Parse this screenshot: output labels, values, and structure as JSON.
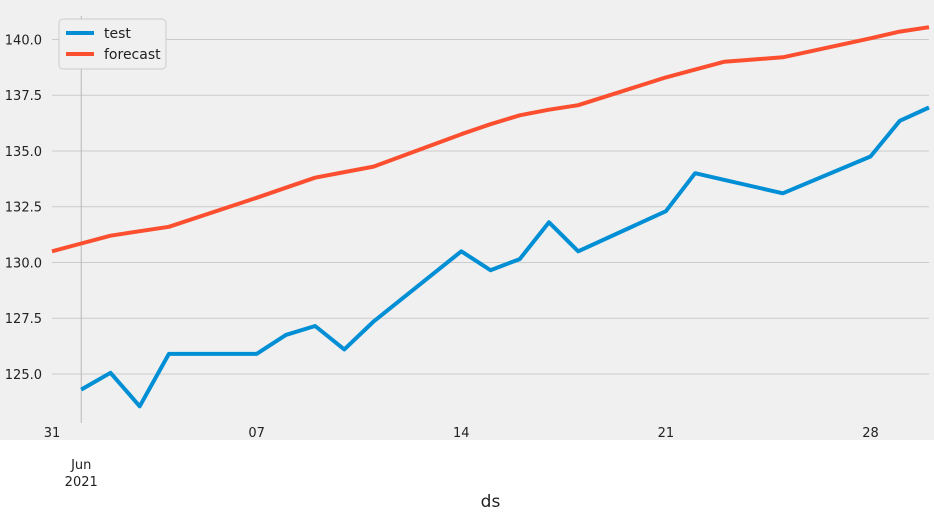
{
  "chart_data": {
    "type": "line",
    "title": "",
    "xlabel": "ds",
    "ylabel": "",
    "x": [
      "2021-05-31",
      "2021-06-01",
      "2021-06-02",
      "2021-06-03",
      "2021-06-04",
      "2021-06-05",
      "2021-06-06",
      "2021-06-07",
      "2021-06-08",
      "2021-06-09",
      "2021-06-10",
      "2021-06-11",
      "2021-06-12",
      "2021-06-13",
      "2021-06-14",
      "2021-06-15",
      "2021-06-16",
      "2021-06-17",
      "2021-06-18",
      "2021-06-19",
      "2021-06-20",
      "2021-06-21",
      "2021-06-22",
      "2021-06-23",
      "2021-06-24",
      "2021-06-25",
      "2021-06-26",
      "2021-06-27",
      "2021-06-28",
      "2021-06-29",
      "2021-06-30"
    ],
    "xlim": [
      "2021-05-31",
      "2021-06-30"
    ],
    "ylim": [
      122.8,
      141.5
    ],
    "y_ticks": [
      125.0,
      127.5,
      130.0,
      132.5,
      135.0,
      137.5,
      140.0
    ],
    "y_tick_labels": [
      "125.0",
      "127.5",
      "130.0",
      "132.5",
      "135.0",
      "137.5",
      "140.0"
    ],
    "x_ticks": [
      {
        "date": "2021-05-31",
        "label": "31",
        "sublabel": ""
      },
      {
        "date": "2021-06-01",
        "label": "",
        "sublabel": "Jun\n2021"
      },
      {
        "date": "2021-06-07",
        "label": "07",
        "sublabel": ""
      },
      {
        "date": "2021-06-14",
        "label": "14",
        "sublabel": ""
      },
      {
        "date": "2021-06-21",
        "label": "21",
        "sublabel": ""
      },
      {
        "date": "2021-06-28",
        "label": "28",
        "sublabel": ""
      }
    ],
    "grid": true,
    "legend_position": "top-left",
    "series": [
      {
        "name": "test",
        "color": "#008fd5",
        "points": [
          {
            "x": "2021-06-01",
            "y": 124.3
          },
          {
            "x": "2021-06-02",
            "y": 125.05
          },
          {
            "x": "2021-06-03",
            "y": 123.55
          },
          {
            "x": "2021-06-04",
            "y": 125.9
          },
          {
            "x": "2021-06-07",
            "y": 125.9
          },
          {
            "x": "2021-06-08",
            "y": 126.75
          },
          {
            "x": "2021-06-09",
            "y": 127.15
          },
          {
            "x": "2021-06-10",
            "y": 126.1
          },
          {
            "x": "2021-06-11",
            "y": 127.35
          },
          {
            "x": "2021-06-14",
            "y": 130.5
          },
          {
            "x": "2021-06-15",
            "y": 129.65
          },
          {
            "x": "2021-06-16",
            "y": 130.15
          },
          {
            "x": "2021-06-17",
            "y": 131.8
          },
          {
            "x": "2021-06-18",
            "y": 130.5
          },
          {
            "x": "2021-06-21",
            "y": 132.3
          },
          {
            "x": "2021-06-22",
            "y": 134.0
          },
          {
            "x": "2021-06-23",
            "y": 133.7
          },
          {
            "x": "2021-06-25",
            "y": 133.1
          },
          {
            "x": "2021-06-28",
            "y": 134.75
          },
          {
            "x": "2021-06-29",
            "y": 136.35
          },
          {
            "x": "2021-06-30",
            "y": 136.95
          }
        ]
      },
      {
        "name": "forecast",
        "color": "#fc4f30",
        "points": [
          {
            "x": "2021-05-31",
            "y": 130.5
          },
          {
            "x": "2021-06-01",
            "y": 130.85
          },
          {
            "x": "2021-06-02",
            "y": 131.2
          },
          {
            "x": "2021-06-03",
            "y": 131.4
          },
          {
            "x": "2021-06-04",
            "y": 131.6
          },
          {
            "x": "2021-06-07",
            "y": 132.9
          },
          {
            "x": "2021-06-08",
            "y": 133.35
          },
          {
            "x": "2021-06-09",
            "y": 133.8
          },
          {
            "x": "2021-06-10",
            "y": 134.05
          },
          {
            "x": "2021-06-11",
            "y": 134.3
          },
          {
            "x": "2021-06-14",
            "y": 135.75
          },
          {
            "x": "2021-06-15",
            "y": 136.2
          },
          {
            "x": "2021-06-16",
            "y": 136.6
          },
          {
            "x": "2021-06-17",
            "y": 136.85
          },
          {
            "x": "2021-06-18",
            "y": 137.05
          },
          {
            "x": "2021-06-21",
            "y": 138.3
          },
          {
            "x": "2021-06-22",
            "y": 138.65
          },
          {
            "x": "2021-06-23",
            "y": 139.0
          },
          {
            "x": "2021-06-24",
            "y": 139.1
          },
          {
            "x": "2021-06-25",
            "y": 139.2
          },
          {
            "x": "2021-06-28",
            "y": 140.05
          },
          {
            "x": "2021-06-29",
            "y": 140.35
          },
          {
            "x": "2021-06-30",
            "y": 140.55
          }
        ]
      }
    ]
  },
  "style": {
    "plot_background": "#f0f0f0",
    "grid_color": "#cbcbcb",
    "text_color": "#222222"
  }
}
